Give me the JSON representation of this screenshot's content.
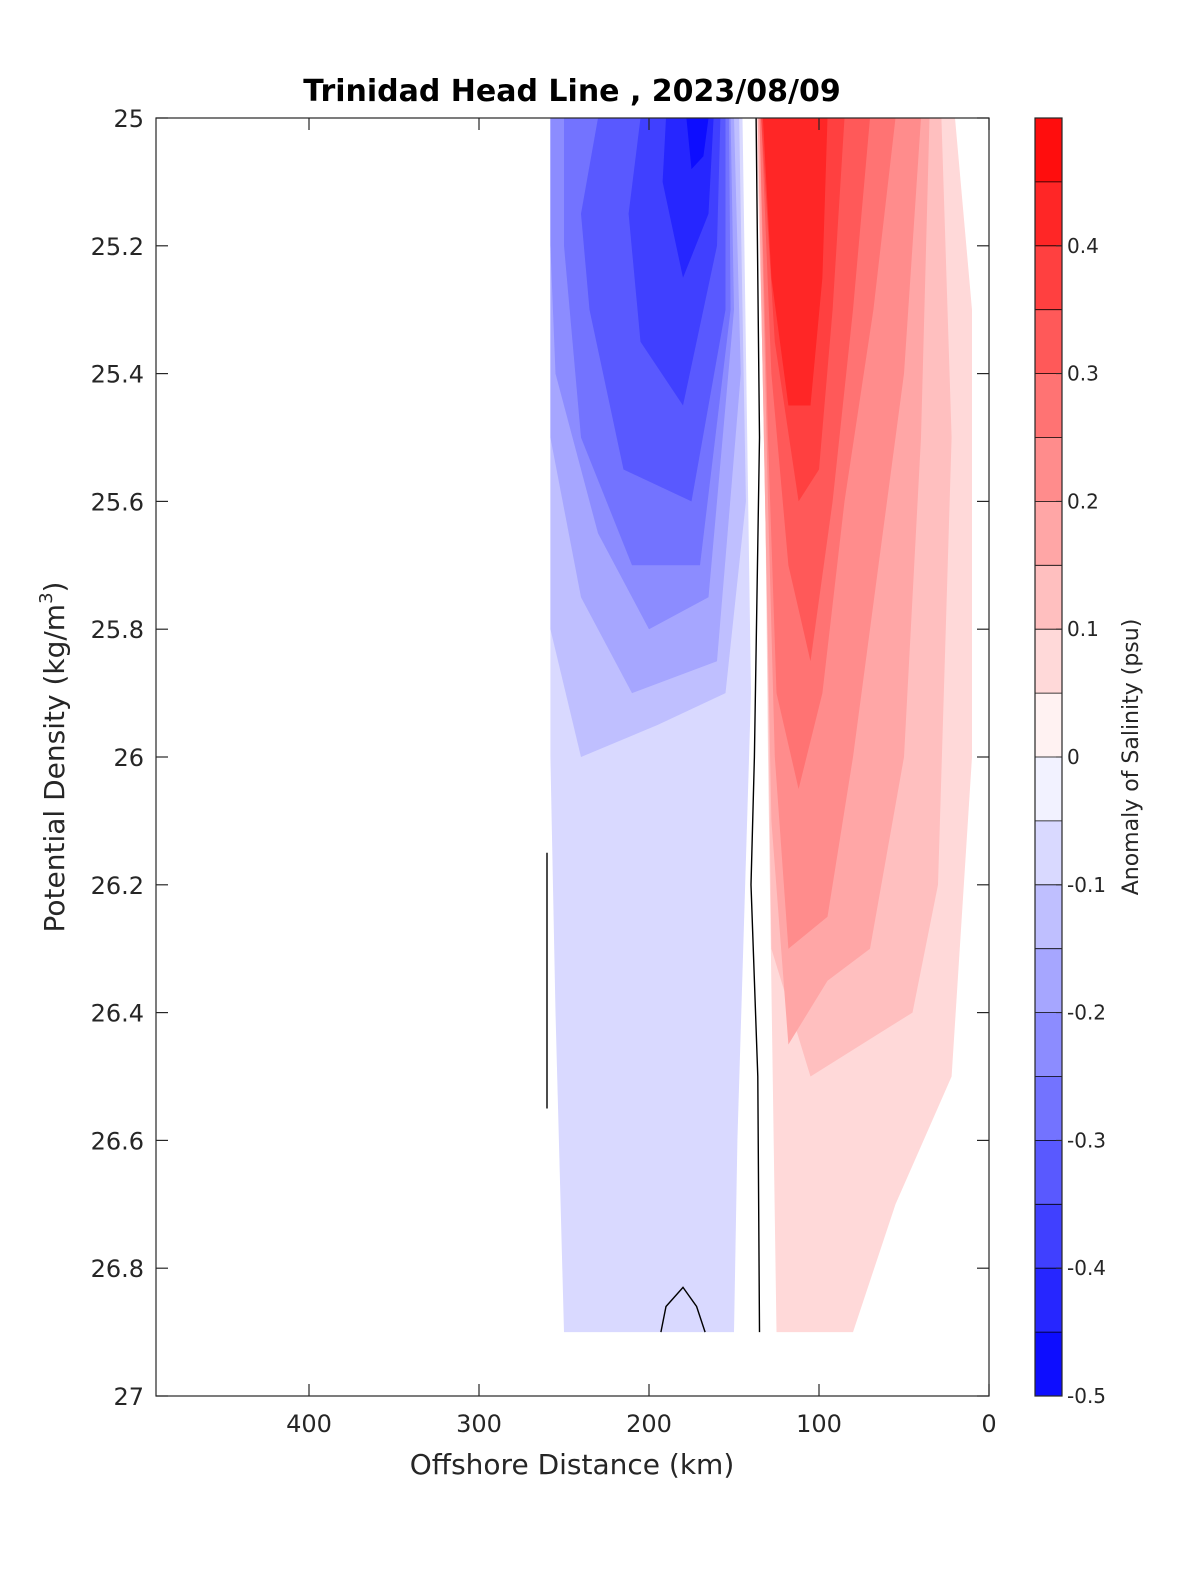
{
  "chart_data": {
    "type": "heatmap",
    "title": "Trinidad Head Line , 2023/08/09",
    "xlabel": "Offshore Distance (km)",
    "ylabel": "Potential Density (kg/m",
    "ylabel_sup": "3",
    "ylabel_close": ")",
    "xlim": [
      490,
      0
    ],
    "x_reversed": true,
    "ylim": [
      25,
      27
    ],
    "y_reversed": true,
    "xticks": [
      400,
      300,
      200,
      100,
      0
    ],
    "xtick_labels": [
      "400",
      "300",
      "200",
      "100",
      "0"
    ],
    "yticks": [
      25,
      25.2,
      25.4,
      25.6,
      25.8,
      26,
      26.2,
      26.4,
      26.6,
      26.8,
      27
    ],
    "ytick_labels": [
      "25",
      "25.2",
      "25.4",
      "25.6",
      "25.8",
      "26",
      "26.2",
      "26.4",
      "26.6",
      "26.8",
      "27"
    ],
    "colorbar": {
      "label": "Anomaly of Salinity (psu)",
      "range": [
        -0.5,
        0.5
      ],
      "level_step": 0.05,
      "ticks": [
        -0.5,
        -0.4,
        -0.3,
        -0.2,
        -0.1,
        0,
        0.1,
        0.2,
        0.3,
        0.4
      ],
      "tick_labels": [
        "-0.5",
        "-0.4",
        "-0.3",
        "-0.2",
        "-0.1",
        "0",
        "0.1",
        "0.2",
        "0.3",
        "0.4"
      ],
      "colormap": "blue-white-red",
      "neg_color": "#0000ff",
      "pos_color": "#ff0000",
      "zero_color": "#ffffff"
    },
    "grid": false,
    "zero_contour": true,
    "regions": [
      {
        "level": -0.05,
        "points": [
          [
            258,
            25.0
          ],
          [
            145,
            25.0
          ],
          [
            140,
            25.9
          ],
          [
            148,
            26.6
          ],
          [
            150,
            26.9
          ],
          [
            250,
            26.9
          ],
          [
            255,
            26.4
          ],
          [
            258,
            26.0
          ]
        ]
      },
      {
        "level": 0.05,
        "points": [
          [
            137,
            25.0
          ],
          [
            20,
            25.0
          ],
          [
            10,
            25.3
          ],
          [
            10,
            26.0
          ],
          [
            22,
            26.5
          ],
          [
            55,
            26.7
          ],
          [
            80,
            26.9
          ],
          [
            125,
            26.9
          ],
          [
            130,
            26.0
          ],
          [
            132,
            25.5
          ]
        ]
      },
      {
        "level": -0.1,
        "points": [
          [
            258,
            25.0
          ],
          [
            147,
            25.0
          ],
          [
            143,
            25.6
          ],
          [
            155,
            25.9
          ],
          [
            195,
            25.95
          ],
          [
            240,
            26.0
          ],
          [
            258,
            25.8
          ]
        ]
      },
      {
        "level": 0.1,
        "points": [
          [
            136,
            25.0
          ],
          [
            28,
            25.0
          ],
          [
            22,
            25.5
          ],
          [
            30,
            26.2
          ],
          [
            45,
            26.4
          ],
          [
            75,
            26.45
          ],
          [
            105,
            26.5
          ],
          [
            128,
            26.3
          ],
          [
            131,
            25.7
          ]
        ]
      },
      {
        "level": -0.15,
        "points": [
          [
            258,
            25.0
          ],
          [
            150,
            25.0
          ],
          [
            146,
            25.4
          ],
          [
            160,
            25.85
          ],
          [
            210,
            25.9
          ],
          [
            240,
            25.75
          ],
          [
            258,
            25.5
          ]
        ]
      },
      {
        "level": 0.15,
        "points": [
          [
            136,
            25.0
          ],
          [
            35,
            25.0
          ],
          [
            40,
            25.5
          ],
          [
            50,
            26.0
          ],
          [
            70,
            26.3
          ],
          [
            95,
            26.35
          ],
          [
            118,
            26.45
          ],
          [
            128,
            26.1
          ],
          [
            131,
            25.7
          ]
        ]
      },
      {
        "level": -0.2,
        "points": [
          [
            258,
            25.0
          ],
          [
            152,
            25.0
          ],
          [
            150,
            25.3
          ],
          [
            165,
            25.75
          ],
          [
            200,
            25.8
          ],
          [
            230,
            25.65
          ],
          [
            255,
            25.4
          ],
          [
            258,
            25.2
          ]
        ]
      },
      {
        "level": 0.2,
        "points": [
          [
            135,
            25.0
          ],
          [
            40,
            25.0
          ],
          [
            50,
            25.4
          ],
          [
            65,
            25.7
          ],
          [
            80,
            26.0
          ],
          [
            95,
            26.25
          ],
          [
            118,
            26.3
          ],
          [
            126,
            26.0
          ],
          [
            130,
            25.6
          ]
        ]
      },
      {
        "level": -0.25,
        "points": [
          [
            250,
            25.0
          ],
          [
            153,
            25.0
          ],
          [
            152,
            25.3
          ],
          [
            170,
            25.7
          ],
          [
            210,
            25.7
          ],
          [
            240,
            25.5
          ],
          [
            250,
            25.2
          ]
        ]
      },
      {
        "level": 0.25,
        "points": [
          [
            135,
            25.0
          ],
          [
            55,
            25.0
          ],
          [
            68,
            25.3
          ],
          [
            85,
            25.6
          ],
          [
            98,
            25.9
          ],
          [
            112,
            26.05
          ],
          [
            125,
            25.9
          ],
          [
            130,
            25.5
          ]
        ]
      },
      {
        "level": -0.3,
        "points": [
          [
            230,
            25.0
          ],
          [
            155,
            25.0
          ],
          [
            155,
            25.3
          ],
          [
            175,
            25.6
          ],
          [
            215,
            25.55
          ],
          [
            235,
            25.3
          ],
          [
            240,
            25.15
          ]
        ]
      },
      {
        "level": 0.3,
        "points": [
          [
            134,
            25.0
          ],
          [
            70,
            25.0
          ],
          [
            80,
            25.3
          ],
          [
            92,
            25.6
          ],
          [
            105,
            25.85
          ],
          [
            118,
            25.7
          ],
          [
            128,
            25.4
          ]
        ]
      },
      {
        "level": -0.35,
        "points": [
          [
            205,
            25.0
          ],
          [
            158,
            25.0
          ],
          [
            160,
            25.2
          ],
          [
            180,
            25.45
          ],
          [
            205,
            25.35
          ],
          [
            212,
            25.15
          ]
        ]
      },
      {
        "level": 0.35,
        "points": [
          [
            134,
            25.0
          ],
          [
            85,
            25.0
          ],
          [
            92,
            25.3
          ],
          [
            100,
            25.55
          ],
          [
            112,
            25.6
          ],
          [
            126,
            25.35
          ]
        ]
      },
      {
        "level": -0.4,
        "points": [
          [
            190,
            25.0
          ],
          [
            162,
            25.0
          ],
          [
            165,
            25.15
          ],
          [
            180,
            25.25
          ],
          [
            192,
            25.1
          ]
        ]
      },
      {
        "level": 0.4,
        "points": [
          [
            133,
            25.0
          ],
          [
            95,
            25.0
          ],
          [
            98,
            25.25
          ],
          [
            105,
            25.45
          ],
          [
            118,
            25.45
          ],
          [
            128,
            25.25
          ]
        ]
      },
      {
        "level": -0.45,
        "points": [
          [
            178,
            25.0
          ],
          [
            165,
            25.0
          ],
          [
            168,
            25.06
          ],
          [
            175,
            25.08
          ]
        ]
      }
    ],
    "contours": [
      {
        "level": 0,
        "points": [
          [
            137,
            25.0
          ],
          [
            135,
            25.5
          ],
          [
            138,
            26.0
          ],
          [
            140,
            26.2
          ],
          [
            136,
            26.5
          ],
          [
            135,
            26.9
          ]
        ]
      },
      {
        "level": 0,
        "points": [
          [
            260,
            26.15
          ],
          [
            260,
            26.55
          ]
        ]
      },
      {
        "level": 0,
        "points": [
          [
            193,
            26.9
          ],
          [
            190,
            26.86
          ],
          [
            180,
            26.83
          ],
          [
            172,
            26.86
          ],
          [
            167,
            26.9
          ]
        ]
      }
    ]
  }
}
